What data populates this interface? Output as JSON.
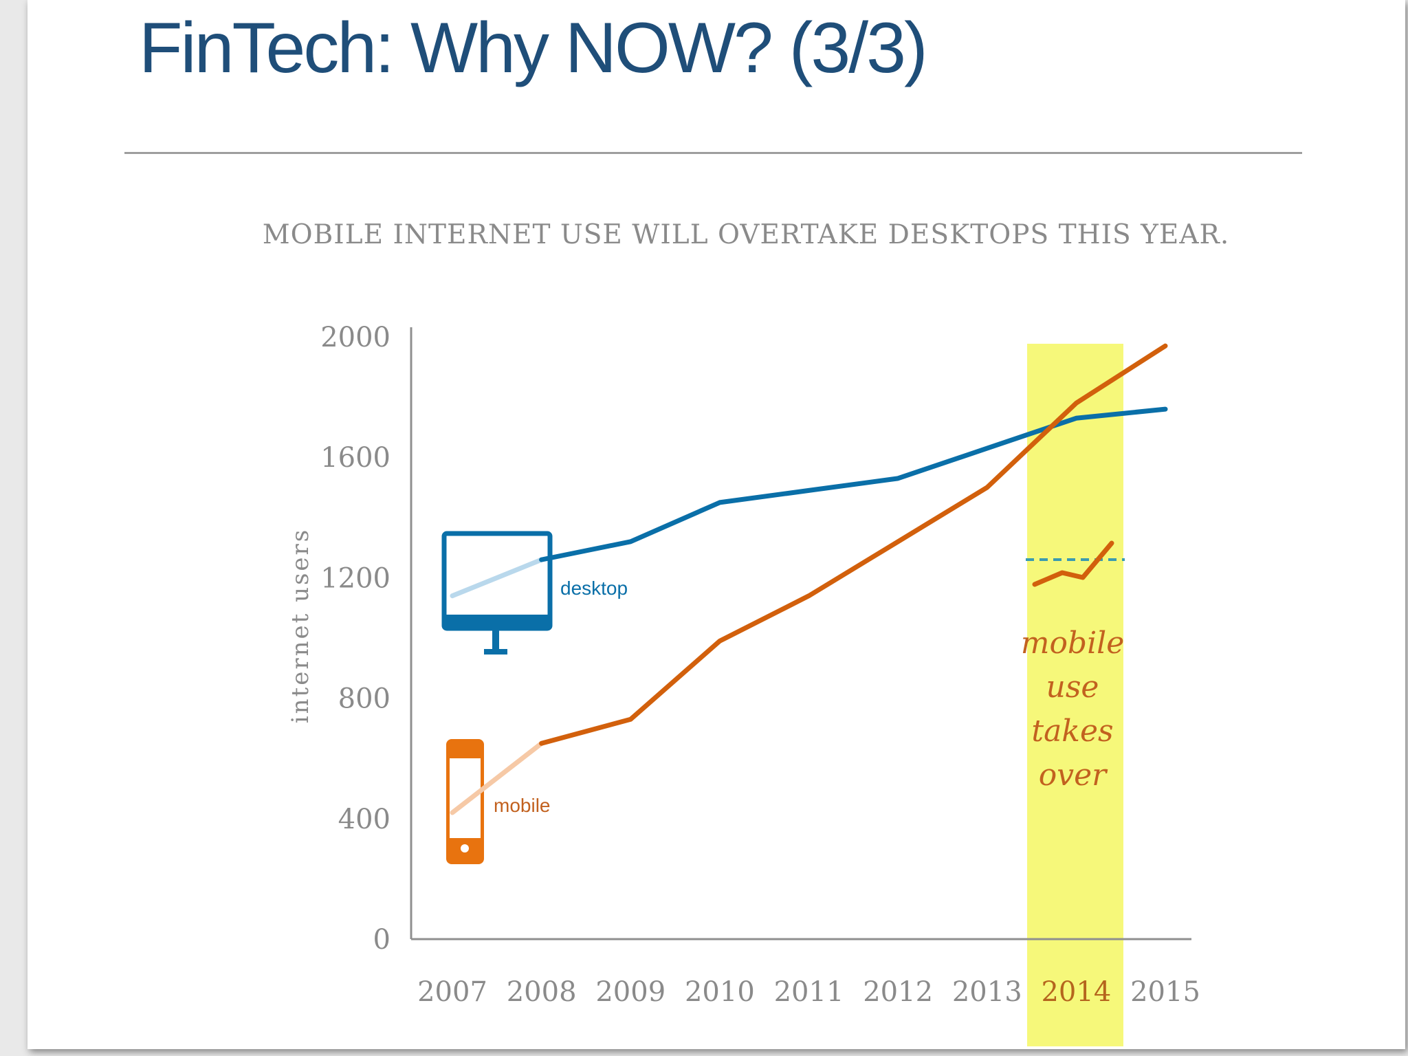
{
  "slide": {
    "title": "FinTech: Why NOW? (3/3)"
  },
  "colors": {
    "title": "#1f4e79",
    "desktop": "#0a6fa8",
    "mobile": "#d2600c",
    "highlight": "#f6f87a",
    "axis_text": "#8a8a8a"
  },
  "icons": {
    "desktop": "desktop-monitor-icon",
    "mobile": "mobile-phone-icon",
    "trend": "trend-line-icon"
  },
  "chart_data": {
    "type": "line",
    "title": "MOBILE INTERNET USE WILL OVERTAKE DESKTOPS THIS YEAR.",
    "xlabel": "",
    "ylabel": "internet users",
    "x": [
      "2007",
      "2008",
      "2009",
      "2010",
      "2011",
      "2012",
      "2013",
      "2014",
      "2015"
    ],
    "yticks": [
      "0",
      "400",
      "800",
      "1200",
      "1600",
      "2000"
    ],
    "ylim": [
      0,
      2000
    ],
    "grid": false,
    "highlight_x": "2014",
    "series": [
      {
        "name": "desktop",
        "values": [
          1140,
          1260,
          1320,
          1450,
          1490,
          1530,
          1630,
          1730,
          1760
        ]
      },
      {
        "name": "mobile",
        "values": [
          420,
          650,
          730,
          990,
          1140,
          1320,
          1500,
          1780,
          1970
        ]
      }
    ],
    "annotation": [
      "mobile",
      "use",
      "takes",
      "over"
    ]
  }
}
